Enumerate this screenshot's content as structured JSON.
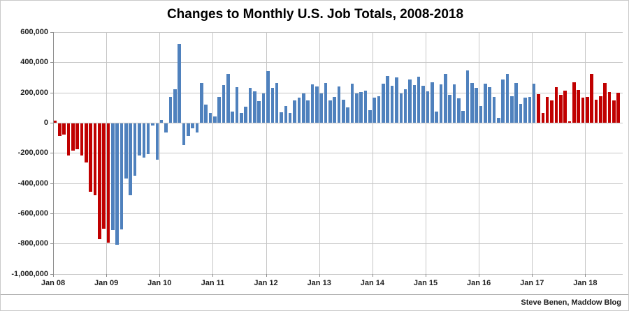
{
  "title": "Changes to Monthly U.S. Job Totals, 2008-2018",
  "attribution": "Steve Benen, Maddow Blog",
  "colors": {
    "republican_bar": "#c00000",
    "democrat_bar": "#4f81bd",
    "gridline": "#c6c6c6",
    "axis": "#8c8c8c",
    "text": "#1f1f1f",
    "background": "#ffffff"
  },
  "chart_data": {
    "type": "bar",
    "title": "Changes to Monthly U.S. Job Totals, 2008-2018",
    "xlabel": "",
    "ylabel": "",
    "unit": "jobs per month (values in thousands)",
    "start_month": "2008-01",
    "end_month": "2018-08",
    "ylim": [
      -1000000,
      600000
    ],
    "grid": "on",
    "legend": "none",
    "y_ticks": [
      {
        "value": 600,
        "label": "600,000"
      },
      {
        "value": 400,
        "label": "400,000"
      },
      {
        "value": 200,
        "label": "200,000"
      },
      {
        "value": 0,
        "label": "0"
      },
      {
        "value": -200,
        "label": "-200,000"
      },
      {
        "value": -400,
        "label": "-400,000"
      },
      {
        "value": -600,
        "label": "-600,000"
      },
      {
        "value": -800,
        "label": "-800,000"
      },
      {
        "value": -1000,
        "label": "-1,000,000"
      }
    ],
    "x_tick_labels": [
      "Jan 08",
      "Jan 09",
      "Jan 10",
      "Jan 11",
      "Jan 12",
      "Jan 13",
      "Jan 14",
      "Jan 15",
      "Jan 16",
      "Jan 17",
      "Jan 18"
    ],
    "red_index_ranges": [
      [
        0,
        12
      ],
      [
        109,
        127
      ]
    ],
    "values_thousands": [
      14,
      -83,
      -72,
      -214,
      -182,
      -172,
      -210,
      -259,
      -452,
      -474,
      -765,
      -697,
      -790,
      -705,
      -805,
      -700,
      -365,
      -475,
      -345,
      -210,
      -225,
      -205,
      -12,
      -240,
      18,
      -60,
      170,
      220,
      520,
      -145,
      -85,
      -30,
      -60,
      265,
      120,
      65,
      40,
      172,
      249,
      323,
      72,
      234,
      65,
      108,
      231,
      208,
      142,
      195,
      343,
      230,
      262,
      69,
      111,
      65,
      149,
      165,
      192,
      146,
      254,
      242,
      195,
      262,
      149,
      172,
      238,
      154,
      103,
      257,
      192,
      205,
      211,
      85,
      165,
      174,
      257,
      308,
      246,
      300,
      195,
      223,
      285,
      251,
      305,
      246,
      208,
      269,
      74,
      254,
      323,
      185,
      254,
      162,
      77,
      345,
      262,
      231,
      110,
      257,
      234,
      169,
      34,
      285,
      323,
      177,
      262,
      124,
      165,
      172,
      257,
      190,
      65,
      172,
      149,
      235,
      185,
      211,
      11,
      269,
      215,
      165,
      169,
      323,
      151,
      174,
      262,
      203,
      146,
      200
    ]
  }
}
